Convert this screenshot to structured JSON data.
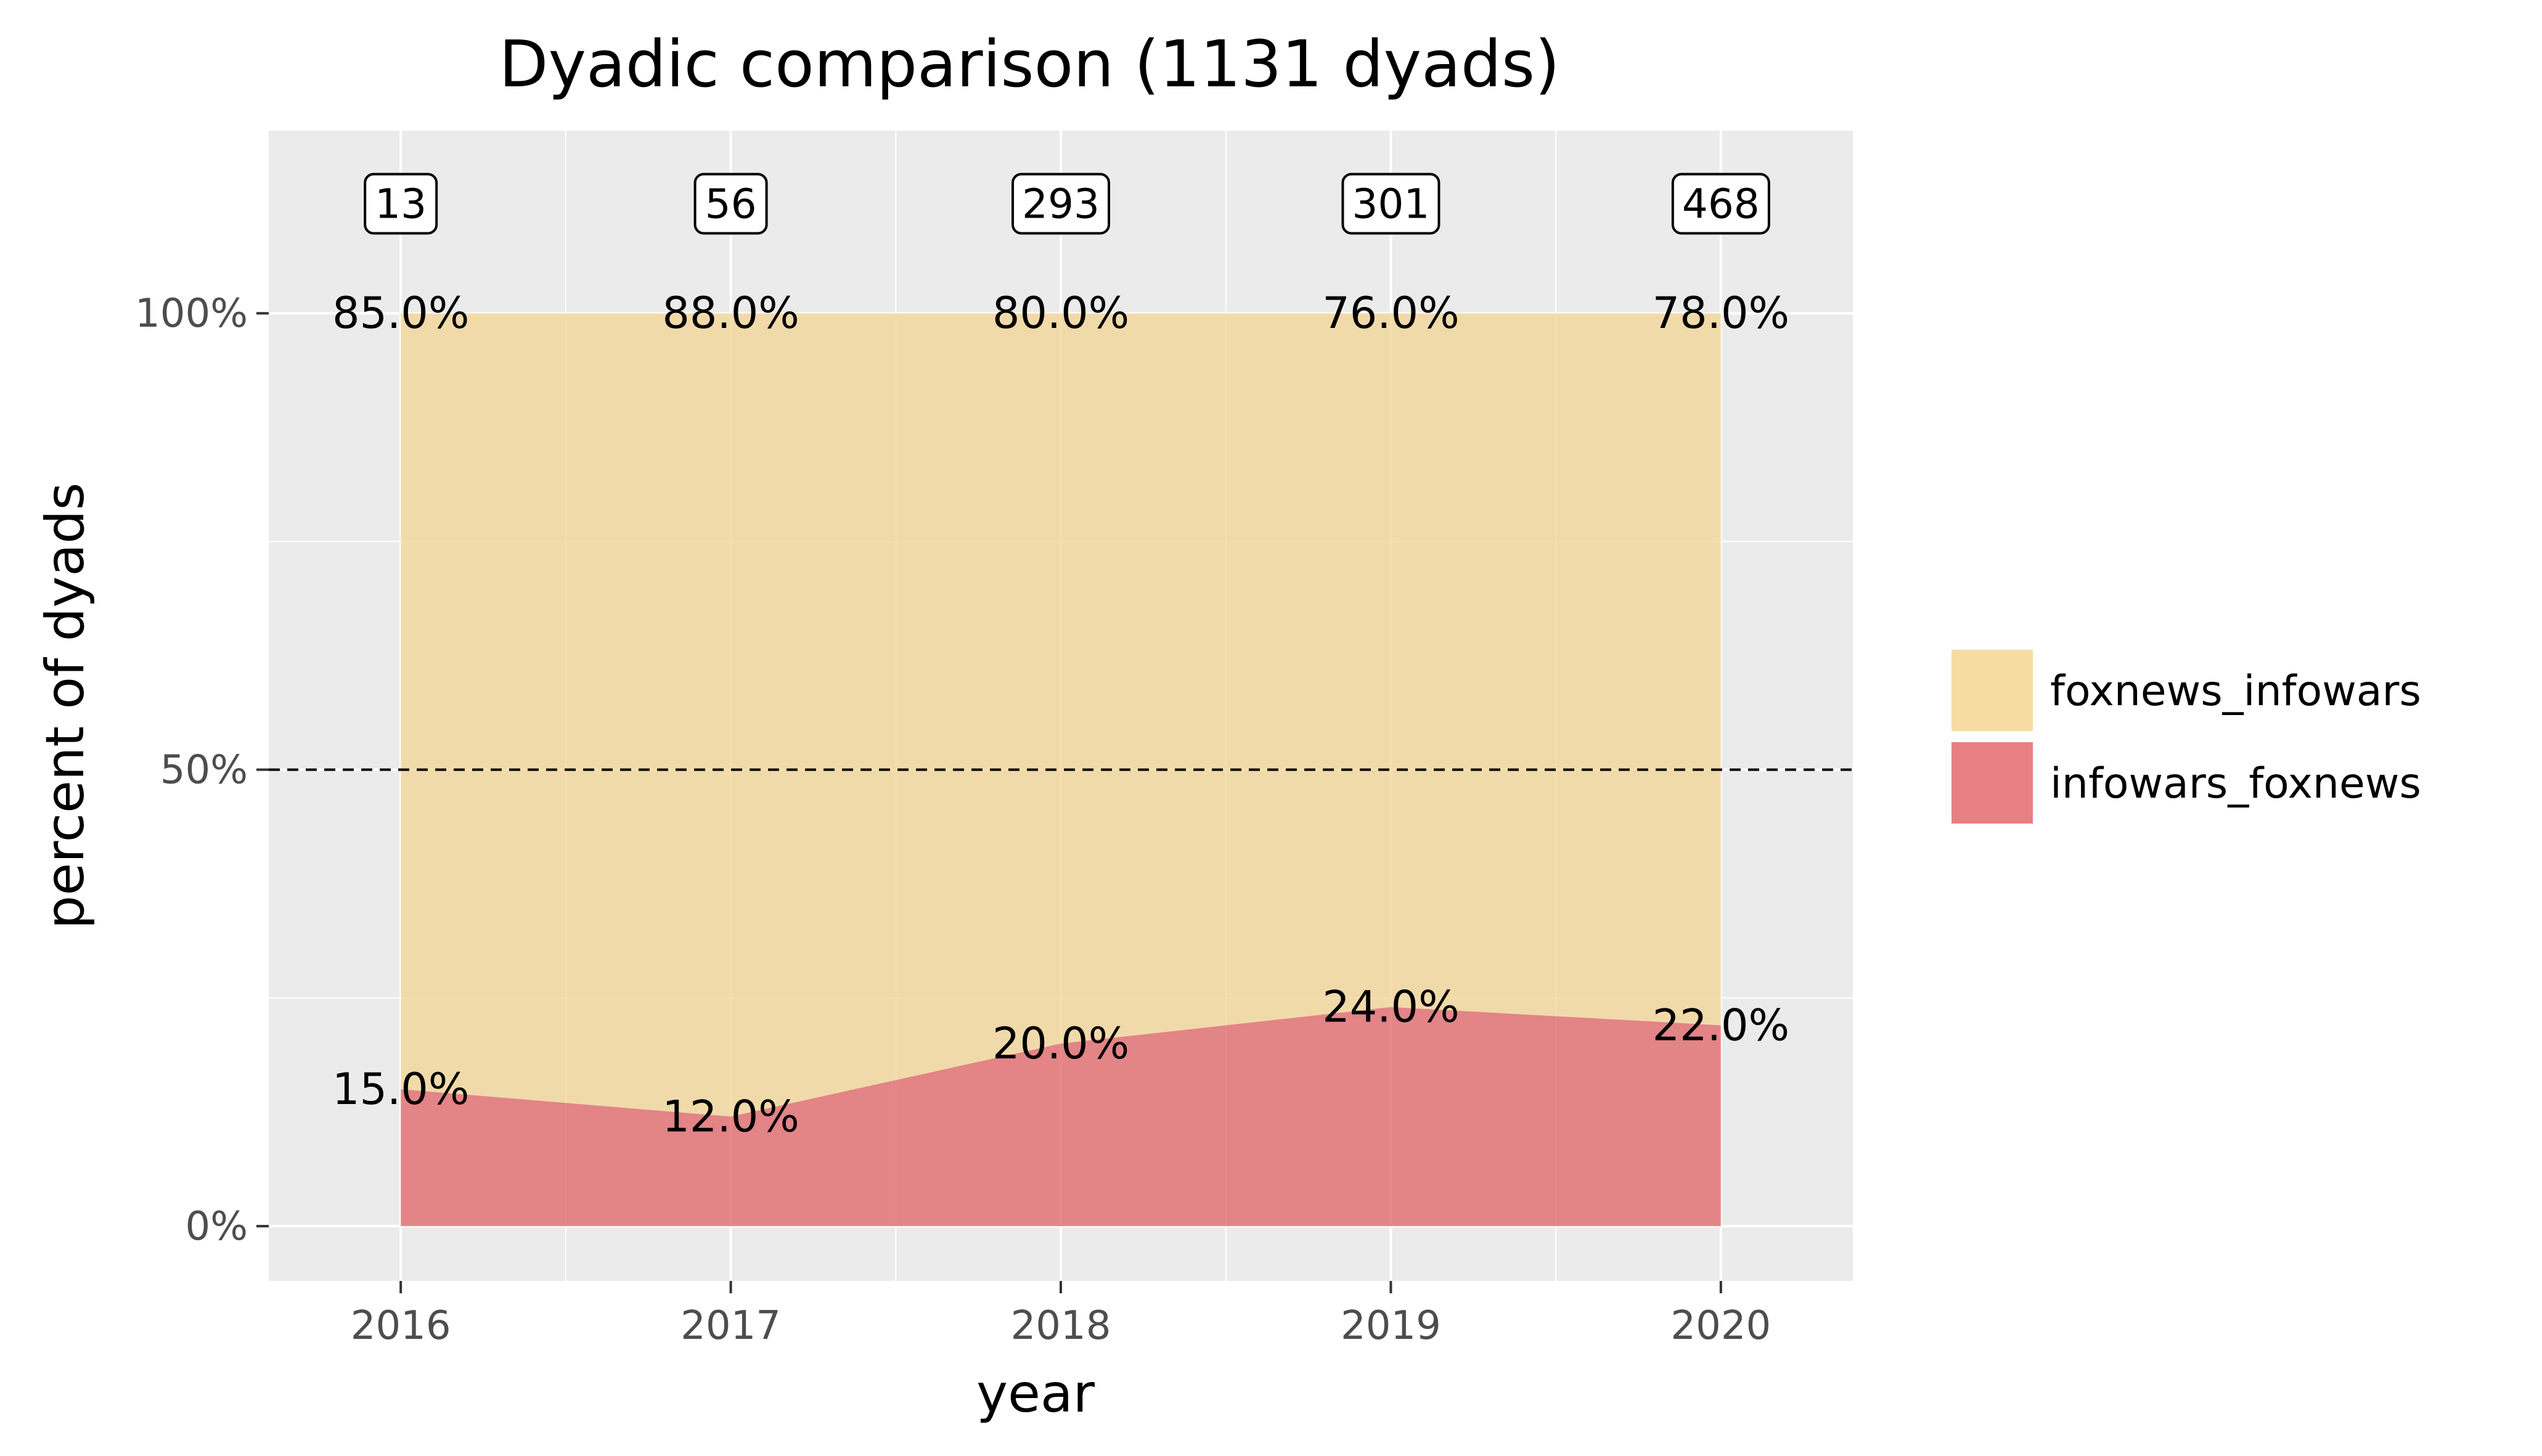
{
  "chart_data": {
    "type": "area",
    "stacked": true,
    "normalized": true,
    "title": "Dyadic comparison (1131 dyads)",
    "xlabel": "year",
    "ylabel": "percent of dyads",
    "x": [
      2016,
      2017,
      2018,
      2019,
      2020
    ],
    "x_tick_labels": [
      "2016",
      "2017",
      "2018",
      "2019",
      "2020"
    ],
    "ylim": [
      0,
      1.2
    ],
    "y_ticks": [
      0,
      0.5,
      1.0
    ],
    "y_tick_labels": [
      "0%",
      "50%",
      "100%"
    ],
    "reference_line": {
      "y": 0.5,
      "style": "dashed"
    },
    "counts": [
      "13",
      "56",
      "293",
      "301",
      "468"
    ],
    "series": [
      {
        "name": "infowars_foxnews",
        "values": [
          0.15,
          0.12,
          0.2,
          0.24,
          0.22
        ],
        "labels": [
          "15.0%",
          "12.0%",
          "20.0%",
          "24.0%",
          "22.0%"
        ],
        "color": "#e06266"
      },
      {
        "name": "foxnews_infowars",
        "values": [
          0.85,
          0.88,
          0.8,
          0.76,
          0.78
        ],
        "labels": [
          "85.0%",
          "88.0%",
          "80.0%",
          "76.0%",
          "78.0%"
        ],
        "color": "#f3d493"
      }
    ],
    "legend": {
      "position": "right",
      "entries": [
        {
          "label": "foxnews_infowars",
          "color": "#f7dca2"
        },
        {
          "label": "infowars_foxnews",
          "color": "#e88083"
        }
      ]
    },
    "grid": true,
    "panel_background": "#ebebeb"
  }
}
